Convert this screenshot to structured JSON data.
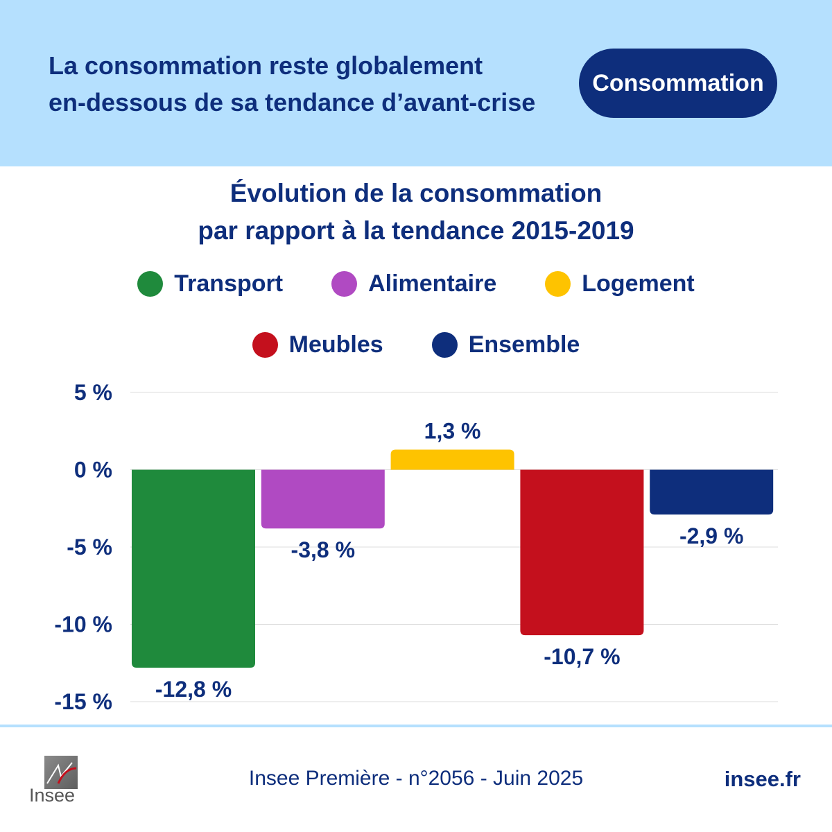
{
  "header": {
    "headline_line1": "La consommation reste globalement",
    "headline_line2": "en-dessous de sa tendance d’avant-crise",
    "tag": "Consommation",
    "background": "#b5e0fe",
    "accent": "#0e2e7c"
  },
  "chart_data": {
    "type": "bar",
    "title_line1": "Évolution de la consommation",
    "title_line2": "par rapport à la tendance 2015-2019",
    "categories": [
      "Transport",
      "Alimentaire",
      "Logement",
      "Meubles",
      "Ensemble"
    ],
    "values": [
      -12.8,
      -3.8,
      1.3,
      -10.7,
      -2.9
    ],
    "value_labels": [
      "-12,8 %",
      "-3,8 %",
      "1,3 %",
      "-10,7 %",
      "-2,9 %"
    ],
    "colors": [
      "#1f8a3c",
      "#b04ac2",
      "#fec300",
      "#c4101d",
      "#0e2e7c"
    ],
    "legend": [
      {
        "name": "Transport",
        "color": "#1f8a3c"
      },
      {
        "name": "Alimentaire",
        "color": "#b04ac2"
      },
      {
        "name": "Logement",
        "color": "#fec300"
      },
      {
        "name": "Meubles",
        "color": "#c4101d"
      },
      {
        "name": "Ensemble",
        "color": "#0e2e7c"
      }
    ],
    "legend_placement": "top",
    "ylim": [
      -15,
      5
    ],
    "yticks": [
      5,
      0,
      -5,
      -10,
      -15
    ],
    "ytick_labels": [
      "5 %",
      "0 %",
      "-5 %",
      "-10 %",
      "-15 %"
    ],
    "grid": true,
    "xlabel": "",
    "ylabel": ""
  },
  "footer": {
    "logo_text": "Insee",
    "source": "Insee Première - n°2056 - Juin 2025",
    "site": "insee.fr"
  }
}
